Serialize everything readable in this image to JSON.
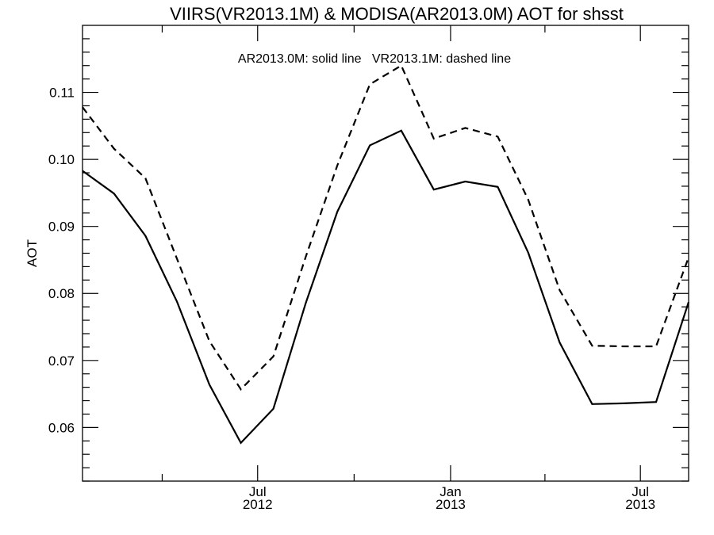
{
  "chart_data": {
    "type": "line",
    "title": "VIIRS(VR2013.1M) & MODISA(AR2013.0M)  AOT for shsst",
    "annotation": "AR2013.0M: solid line   VR2013.1M: dashed line",
    "ylabel": "AOT",
    "xlabel": "",
    "ylim": [
      0.052,
      0.12
    ],
    "yticks_major": [
      0.06,
      0.07,
      0.08,
      0.09,
      0.1,
      0.11
    ],
    "ytick_labels": [
      "0.06",
      "0.07",
      "0.08",
      "0.09",
      "0.10",
      "0.11"
    ],
    "xlim": [
      "2012-01-16",
      "2013-08-16"
    ],
    "xticks_major": [
      {
        "date": "2012-07-01",
        "month": "Jul",
        "year": "2012"
      },
      {
        "date": "2013-01-01",
        "month": "Jan",
        "year": "2013"
      },
      {
        "date": "2013-07-01",
        "month": "Jul",
        "year": "2013"
      }
    ],
    "xticks_minor": [
      "2012-04-01",
      "2012-10-01",
      "2013-04-01"
    ],
    "x": [
      "2012-01-16",
      "2012-02-15",
      "2012-03-16",
      "2012-04-15",
      "2012-05-16",
      "2012-06-15",
      "2012-07-16",
      "2012-08-16",
      "2012-09-15",
      "2012-10-16",
      "2012-11-15",
      "2012-12-16",
      "2013-01-15",
      "2013-02-15",
      "2013-03-16",
      "2013-04-15",
      "2013-05-16",
      "2013-06-15",
      "2013-07-16",
      "2013-08-16"
    ],
    "series": [
      {
        "name": "AR2013.0M",
        "style": "solid",
        "color": "#000000",
        "values": [
          0.0983,
          0.0949,
          0.0886,
          0.0788,
          0.0664,
          0.0577,
          0.0628,
          0.0786,
          0.0922,
          0.1021,
          0.1043,
          0.0955,
          0.0967,
          0.0959,
          0.0861,
          0.0727,
          0.0635,
          0.0636,
          0.0638,
          0.0787
        ]
      },
      {
        "name": "VR2013.1M",
        "style": "dashed",
        "color": "#000000",
        "values": [
          0.1078,
          0.1016,
          0.0972,
          0.0852,
          0.0729,
          0.0657,
          0.0706,
          0.0855,
          0.0991,
          0.1112,
          0.114,
          0.1031,
          0.1047,
          0.1034,
          0.094,
          0.0805,
          0.0722,
          0.0721,
          0.0721,
          0.0854
        ]
      }
    ]
  }
}
